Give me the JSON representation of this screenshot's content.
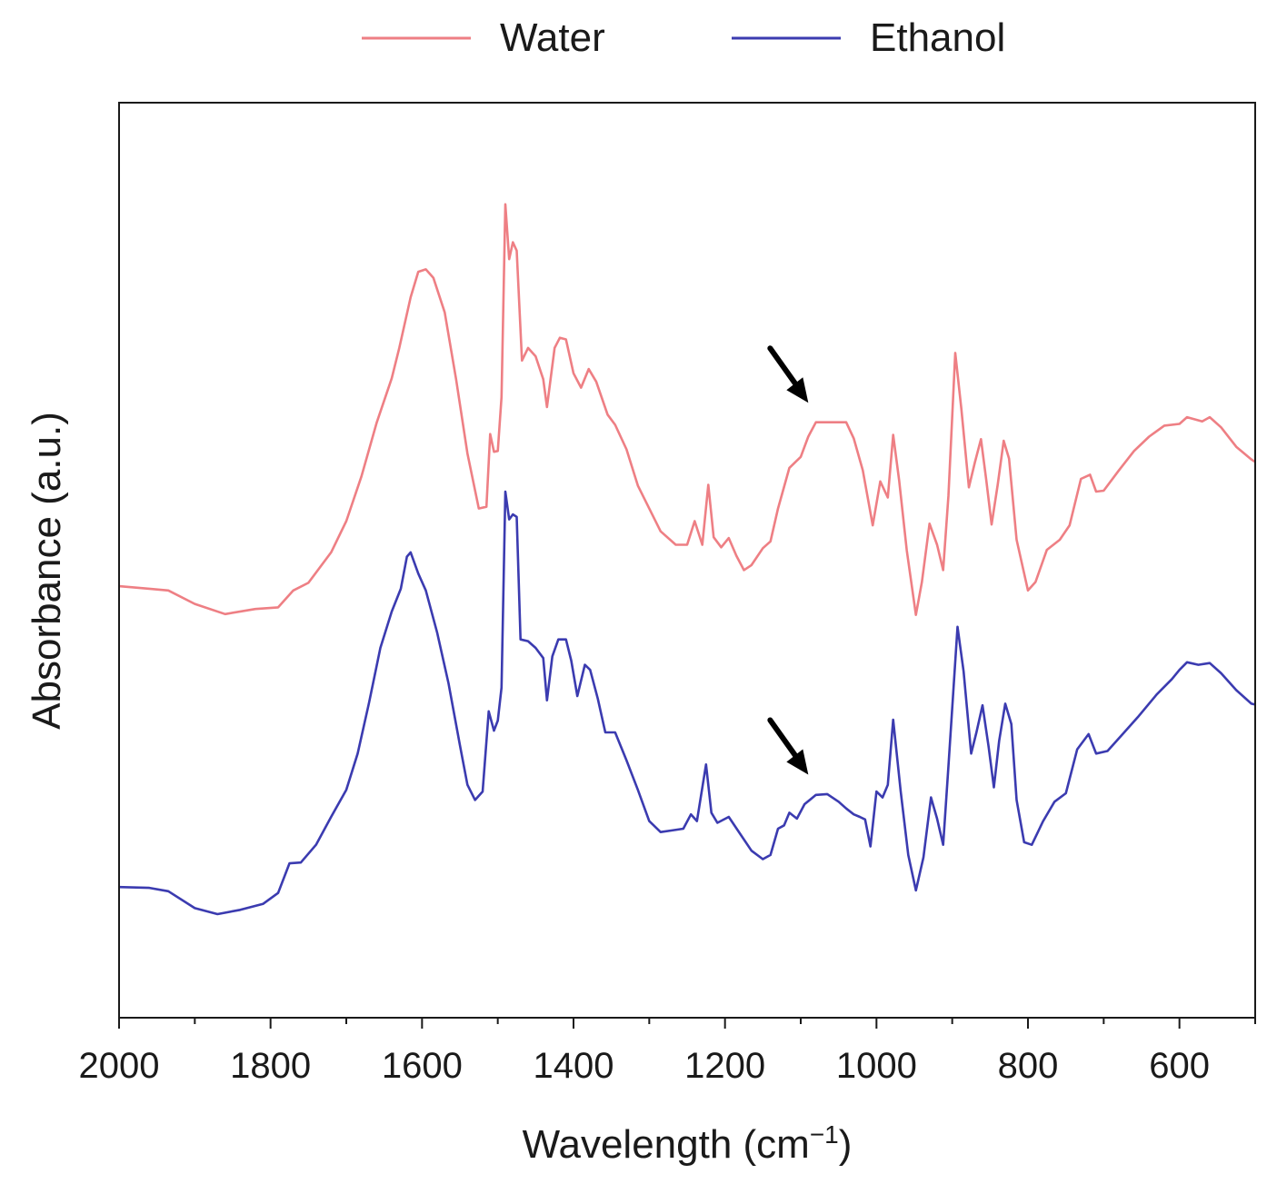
{
  "chart_data": {
    "type": "line",
    "title": "",
    "xlabel": "Wavelength (cm",
    "xlabel_unit_exponent": "−1",
    "xlabel_close": ")",
    "ylabel": "Absorbance (a.u.)",
    "xlim": [
      2000,
      500
    ],
    "x_reversed": true,
    "ylim": [
      0,
      1
    ],
    "y_ticks_shown": false,
    "x_ticks": [
      2000,
      1800,
      1600,
      1400,
      1200,
      1000,
      800,
      600
    ],
    "x_tick_labels": [
      "2000",
      "1800",
      "1600",
      "1400",
      "1200",
      "1000",
      "800",
      "600"
    ],
    "legend_position": "top-center",
    "grid": false,
    "annotations": [
      {
        "type": "arrow",
        "series": "Water",
        "x": 1090,
        "y": 0.69
      },
      {
        "type": "arrow",
        "series": "Ethanol",
        "x": 1090,
        "y": 0.25
      }
    ],
    "series": [
      {
        "name": "Water",
        "color": "#ee7f84",
        "points": [
          [
            2000,
            0.473
          ],
          [
            1960,
            0.47
          ],
          [
            1935,
            0.468
          ],
          [
            1900,
            0.452
          ],
          [
            1860,
            0.44
          ],
          [
            1820,
            0.446
          ],
          [
            1790,
            0.448
          ],
          [
            1770,
            0.468
          ],
          [
            1750,
            0.477
          ],
          [
            1720,
            0.513
          ],
          [
            1700,
            0.55
          ],
          [
            1680,
            0.603
          ],
          [
            1660,
            0.666
          ],
          [
            1640,
            0.719
          ],
          [
            1630,
            0.755
          ],
          [
            1615,
            0.815
          ],
          [
            1605,
            0.845
          ],
          [
            1595,
            0.848
          ],
          [
            1585,
            0.838
          ],
          [
            1570,
            0.797
          ],
          [
            1555,
            0.718
          ],
          [
            1540,
            0.63
          ],
          [
            1525,
            0.565
          ],
          [
            1515,
            0.567
          ],
          [
            1510,
            0.653
          ],
          [
            1505,
            0.632
          ],
          [
            1500,
            0.633
          ],
          [
            1495,
            0.697
          ],
          [
            1490,
            0.925
          ],
          [
            1485,
            0.86
          ],
          [
            1480,
            0.88
          ],
          [
            1475,
            0.87
          ],
          [
            1468,
            0.74
          ],
          [
            1460,
            0.755
          ],
          [
            1450,
            0.745
          ],
          [
            1440,
            0.718
          ],
          [
            1435,
            0.685
          ],
          [
            1425,
            0.755
          ],
          [
            1418,
            0.767
          ],
          [
            1410,
            0.765
          ],
          [
            1400,
            0.725
          ],
          [
            1390,
            0.708
          ],
          [
            1380,
            0.73
          ],
          [
            1370,
            0.715
          ],
          [
            1355,
            0.676
          ],
          [
            1345,
            0.664
          ],
          [
            1330,
            0.635
          ],
          [
            1315,
            0.592
          ],
          [
            1300,
            0.565
          ],
          [
            1285,
            0.538
          ],
          [
            1265,
            0.522
          ],
          [
            1250,
            0.522
          ],
          [
            1240,
            0.55
          ],
          [
            1230,
            0.522
          ],
          [
            1222,
            0.593
          ],
          [
            1215,
            0.531
          ],
          [
            1205,
            0.519
          ],
          [
            1195,
            0.53
          ],
          [
            1185,
            0.509
          ],
          [
            1175,
            0.492
          ],
          [
            1165,
            0.498
          ],
          [
            1150,
            0.518
          ],
          [
            1140,
            0.526
          ],
          [
            1130,
            0.565
          ],
          [
            1115,
            0.613
          ],
          [
            1100,
            0.626
          ],
          [
            1090,
            0.65
          ],
          [
            1080,
            0.667
          ],
          [
            1060,
            0.667
          ],
          [
            1040,
            0.667
          ],
          [
            1030,
            0.648
          ],
          [
            1018,
            0.61
          ],
          [
            1005,
            0.545
          ],
          [
            995,
            0.597
          ],
          [
            985,
            0.578
          ],
          [
            978,
            0.652
          ],
          [
            970,
            0.598
          ],
          [
            960,
            0.515
          ],
          [
            948,
            0.439
          ],
          [
            940,
            0.478
          ],
          [
            930,
            0.547
          ],
          [
            920,
            0.522
          ],
          [
            912,
            0.492
          ],
          [
            905,
            0.58
          ],
          [
            896,
            0.749
          ],
          [
            888,
            0.683
          ],
          [
            878,
            0.59
          ],
          [
            870,
            0.62
          ],
          [
            862,
            0.647
          ],
          [
            855,
            0.598
          ],
          [
            848,
            0.546
          ],
          [
            840,
            0.593
          ],
          [
            832,
            0.645
          ],
          [
            825,
            0.624
          ],
          [
            815,
            0.528
          ],
          [
            800,
            0.468
          ],
          [
            790,
            0.478
          ],
          [
            775,
            0.516
          ],
          [
            758,
            0.528
          ],
          [
            745,
            0.545
          ],
          [
            730,
            0.6
          ],
          [
            718,
            0.605
          ],
          [
            710,
            0.585
          ],
          [
            700,
            0.586
          ],
          [
            680,
            0.61
          ],
          [
            660,
            0.633
          ],
          [
            640,
            0.65
          ],
          [
            620,
            0.663
          ],
          [
            600,
            0.665
          ],
          [
            590,
            0.673
          ],
          [
            570,
            0.668
          ],
          [
            560,
            0.673
          ],
          [
            545,
            0.661
          ],
          [
            525,
            0.638
          ],
          [
            505,
            0.623
          ],
          [
            500,
            0.62
          ]
        ]
      },
      {
        "name": "Ethanol",
        "color": "#3b3bb0",
        "points": [
          [
            2000,
            0.117
          ],
          [
            1960,
            0.116
          ],
          [
            1935,
            0.112
          ],
          [
            1900,
            0.092
          ],
          [
            1870,
            0.085
          ],
          [
            1840,
            0.09
          ],
          [
            1810,
            0.097
          ],
          [
            1790,
            0.11
          ],
          [
            1775,
            0.145
          ],
          [
            1760,
            0.146
          ],
          [
            1740,
            0.167
          ],
          [
            1720,
            0.2
          ],
          [
            1700,
            0.232
          ],
          [
            1685,
            0.275
          ],
          [
            1670,
            0.335
          ],
          [
            1655,
            0.4
          ],
          [
            1640,
            0.443
          ],
          [
            1628,
            0.47
          ],
          [
            1620,
            0.508
          ],
          [
            1615,
            0.513
          ],
          [
            1605,
            0.488
          ],
          [
            1595,
            0.468
          ],
          [
            1580,
            0.418
          ],
          [
            1565,
            0.358
          ],
          [
            1550,
            0.285
          ],
          [
            1540,
            0.238
          ],
          [
            1530,
            0.22
          ],
          [
            1520,
            0.23
          ],
          [
            1512,
            0.325
          ],
          [
            1505,
            0.302
          ],
          [
            1500,
            0.314
          ],
          [
            1495,
            0.353
          ],
          [
            1490,
            0.585
          ],
          [
            1485,
            0.552
          ],
          [
            1480,
            0.558
          ],
          [
            1475,
            0.555
          ],
          [
            1470,
            0.41
          ],
          [
            1460,
            0.408
          ],
          [
            1450,
            0.4
          ],
          [
            1440,
            0.388
          ],
          [
            1435,
            0.338
          ],
          [
            1428,
            0.39
          ],
          [
            1420,
            0.41
          ],
          [
            1410,
            0.41
          ],
          [
            1403,
            0.385
          ],
          [
            1395,
            0.343
          ],
          [
            1385,
            0.38
          ],
          [
            1378,
            0.374
          ],
          [
            1368,
            0.34
          ],
          [
            1358,
            0.3
          ],
          [
            1345,
            0.3
          ],
          [
            1330,
            0.267
          ],
          [
            1315,
            0.232
          ],
          [
            1300,
            0.195
          ],
          [
            1285,
            0.182
          ],
          [
            1270,
            0.184
          ],
          [
            1255,
            0.186
          ],
          [
            1245,
            0.203
          ],
          [
            1237,
            0.195
          ],
          [
            1225,
            0.262
          ],
          [
            1218,
            0.205
          ],
          [
            1210,
            0.193
          ],
          [
            1195,
            0.2
          ],
          [
            1180,
            0.18
          ],
          [
            1165,
            0.16
          ],
          [
            1150,
            0.15
          ],
          [
            1140,
            0.155
          ],
          [
            1130,
            0.186
          ],
          [
            1122,
            0.19
          ],
          [
            1115,
            0.205
          ],
          [
            1105,
            0.198
          ],
          [
            1095,
            0.215
          ],
          [
            1080,
            0.226
          ],
          [
            1065,
            0.227
          ],
          [
            1050,
            0.218
          ],
          [
            1040,
            0.21
          ],
          [
            1030,
            0.203
          ],
          [
            1022,
            0.2
          ],
          [
            1015,
            0.197
          ],
          [
            1008,
            0.165
          ],
          [
            1000,
            0.23
          ],
          [
            992,
            0.223
          ],
          [
            985,
            0.238
          ],
          [
            978,
            0.315
          ],
          [
            968,
            0.23
          ],
          [
            958,
            0.155
          ],
          [
            948,
            0.113
          ],
          [
            938,
            0.152
          ],
          [
            928,
            0.223
          ],
          [
            920,
            0.198
          ],
          [
            912,
            0.167
          ],
          [
            905,
            0.26
          ],
          [
            893,
            0.425
          ],
          [
            885,
            0.372
          ],
          [
            875,
            0.275
          ],
          [
            868,
            0.3
          ],
          [
            860,
            0.332
          ],
          [
            852,
            0.283
          ],
          [
            845,
            0.235
          ],
          [
            838,
            0.29
          ],
          [
            830,
            0.334
          ],
          [
            822,
            0.31
          ],
          [
            815,
            0.22
          ],
          [
            805,
            0.17
          ],
          [
            795,
            0.167
          ],
          [
            780,
            0.195
          ],
          [
            765,
            0.218
          ],
          [
            750,
            0.228
          ],
          [
            735,
            0.28
          ],
          [
            720,
            0.298
          ],
          [
            710,
            0.275
          ],
          [
            695,
            0.278
          ],
          [
            675,
            0.298
          ],
          [
            655,
            0.318
          ],
          [
            630,
            0.345
          ],
          [
            610,
            0.363
          ],
          [
            600,
            0.374
          ],
          [
            590,
            0.383
          ],
          [
            575,
            0.38
          ],
          [
            560,
            0.382
          ],
          [
            545,
            0.37
          ],
          [
            525,
            0.35
          ],
          [
            505,
            0.334
          ],
          [
            500,
            0.333
          ]
        ]
      }
    ]
  }
}
